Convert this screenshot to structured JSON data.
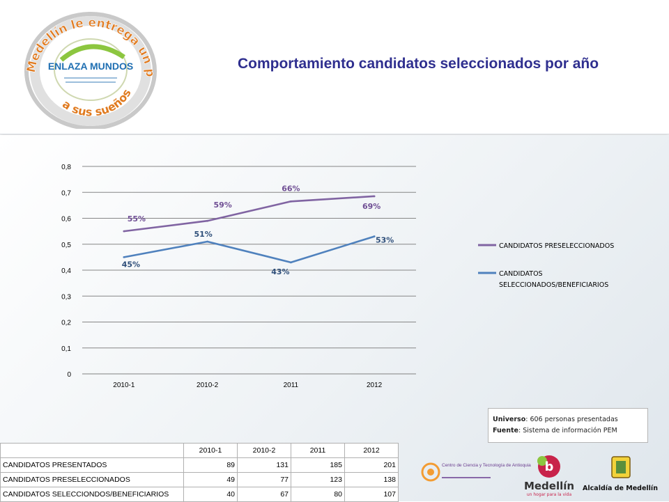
{
  "header": {
    "title": "Comportamiento candidatos seleccionados por año",
    "logo": {
      "ring_text_top": "Medellín le entrega un pasaporte",
      "ring_text_bottom": "a sus sueños",
      "brand": "ENLAZA MUNDOS"
    }
  },
  "chart_data": {
    "type": "line",
    "categories": [
      "2010-1",
      "2010-2",
      "2011",
      "2012"
    ],
    "ylim": [
      0,
      0.8
    ],
    "yticks": [
      "0",
      "0,1",
      "0,2",
      "0,3",
      "0,4",
      "0,5",
      "0,6",
      "0,7",
      "0,8"
    ],
    "grid": true,
    "legend_position": "right",
    "series": [
      {
        "name": "CANDIDATOS PRESELECCIONADOS",
        "color": "#8064a2",
        "values": [
          0.55,
          0.59,
          0.665,
          0.685
        ],
        "labels": [
          "55%",
          "59%",
          "66%",
          "69%"
        ]
      },
      {
        "name": "CANDIDATOS SELECCIONADOS/BENEFICIARIOS",
        "color": "#4f81bd",
        "values": [
          0.45,
          0.51,
          0.43,
          0.53
        ],
        "labels": [
          "45%",
          "51%",
          "43%",
          "53%"
        ]
      }
    ]
  },
  "note": {
    "universo_label": "Universo",
    "universo_text": ": 606 personas presentadas",
    "fuente_label": "Fuente",
    "fuente_text": ": Sistema de información PEM"
  },
  "table": {
    "headers": [
      "",
      "2010-1",
      "2010-2",
      "2011",
      "2012"
    ],
    "rows": [
      {
        "label": "CANDIDATOS PRESENTADOS",
        "values": [
          "89",
          "131",
          "185",
          "201"
        ]
      },
      {
        "label": "CANDIDATOS PRESELECCIONADOS",
        "values": [
          "49",
          "77",
          "123",
          "138"
        ]
      },
      {
        "label": "CANDIDATOS SELECCIONDOS/BENEFICIARIOS",
        "values": [
          "40",
          "67",
          "80",
          "107"
        ]
      }
    ]
  },
  "footer_logos": {
    "centro": "Centro de Ciencia y Tecnología de Antioquia",
    "medellin": "Medellín",
    "medellin_tagline": "un hogar para la vida",
    "alcaldia": "Alcaldía de Medellín"
  }
}
